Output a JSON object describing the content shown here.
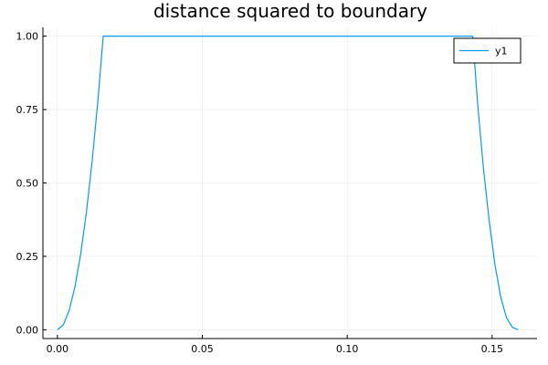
{
  "chart_data": {
    "type": "line",
    "title": "distance squared to boundary",
    "xlabel": "",
    "ylabel": "",
    "xlim": [
      -0.005,
      0.1655
    ],
    "ylim": [
      -0.03,
      1.03
    ],
    "x_ticks": [
      {
        "value": 0.0,
        "label": "0.00"
      },
      {
        "value": 0.05,
        "label": "0.05"
      },
      {
        "value": 0.1,
        "label": "0.10"
      },
      {
        "value": 0.15,
        "label": "0.15"
      }
    ],
    "y_ticks": [
      {
        "value": 0.0,
        "label": "0.00"
      },
      {
        "value": 0.25,
        "label": "0.25"
      },
      {
        "value": 0.5,
        "label": "0.50"
      },
      {
        "value": 0.75,
        "label": "0.75"
      },
      {
        "value": 1.0,
        "label": "1.00"
      }
    ],
    "grid": true,
    "legend_position": "top-right",
    "series": [
      {
        "name": "y1",
        "color": "#009AFA",
        "x": [
          0.0,
          0.002,
          0.004,
          0.006,
          0.008,
          0.01,
          0.012,
          0.014,
          0.0158,
          0.03,
          0.05,
          0.07,
          0.09,
          0.11,
          0.13,
          0.1433,
          0.145,
          0.147,
          0.149,
          0.151,
          0.153,
          0.155,
          0.157,
          0.159
        ],
        "y": [
          0.0,
          0.016,
          0.064,
          0.144,
          0.256,
          0.4,
          0.576,
          0.784,
          1.0,
          1.0,
          1.0,
          1.0,
          1.0,
          1.0,
          1.0,
          1.0,
          0.77,
          0.55,
          0.37,
          0.22,
          0.11,
          0.04,
          0.008,
          0.0
        ]
      }
    ]
  }
}
